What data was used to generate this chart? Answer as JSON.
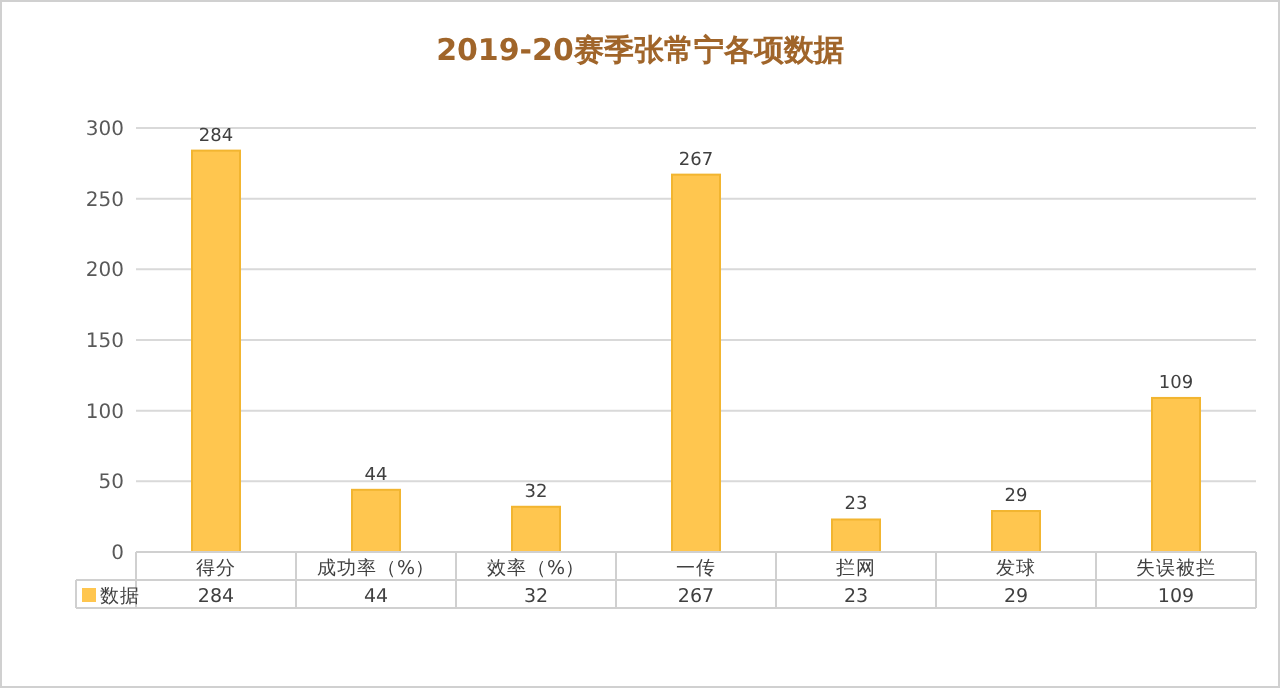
{
  "chart_data": {
    "type": "bar",
    "title": "2019-20赛季张常宁各项数据",
    "categories": [
      "得分",
      "成功率（%）",
      "效率（%）",
      "一传",
      "拦网",
      "发球",
      "失误被拦"
    ],
    "series": [
      {
        "name": "数据",
        "color": "#ffc64f",
        "values": [
          284,
          44,
          32,
          267,
          23,
          29,
          109
        ],
        "value_labels": [
          "284",
          "44",
          "32",
          "267",
          "23",
          "29",
          "109"
        ]
      }
    ],
    "ylim": [
      0,
      300
    ],
    "yticks": [
      0,
      50,
      100,
      150,
      200,
      250,
      300
    ],
    "annotations": [
      "284",
      "44",
      "32",
      "267",
      "23",
      "29",
      "109"
    ],
    "grid": "y",
    "legend": "bottom"
  }
}
